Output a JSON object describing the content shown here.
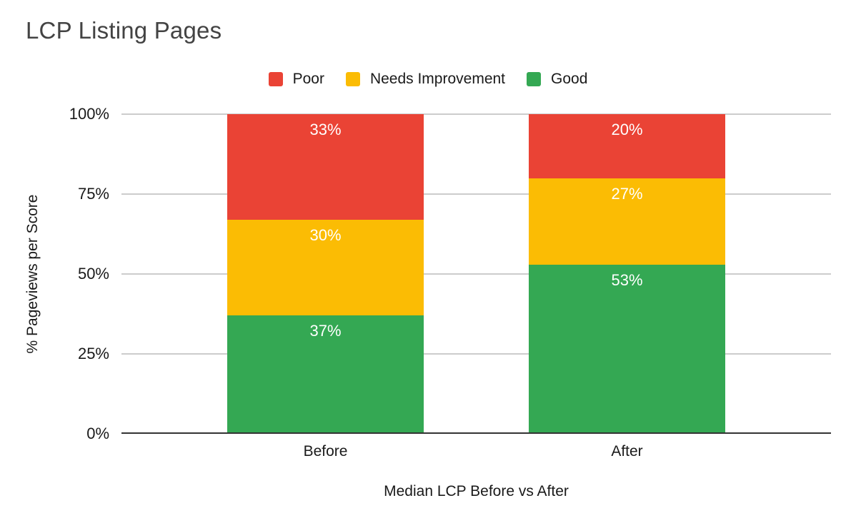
{
  "chart_data": {
    "type": "bar",
    "stacked": true,
    "title": "LCP Listing Pages",
    "categories": [
      "Before",
      "After"
    ],
    "series": [
      {
        "name": "Poor",
        "color": "#EA4335",
        "values": [
          33,
          20
        ]
      },
      {
        "name": "Needs Improvement",
        "color": "#FBBC04",
        "values": [
          30,
          27
        ]
      },
      {
        "name": "Good",
        "color": "#34A853",
        "values": [
          37,
          53
        ]
      }
    ],
    "value_suffix": "%",
    "xlabel": "Median LCP Before vs After",
    "ylabel": "% Pageviews per Score",
    "y_ticks": [
      "0%",
      "25%",
      "50%",
      "75%",
      "100%"
    ],
    "ylim": [
      0,
      100
    ],
    "legend_position": "top",
    "grid": true,
    "colors": {
      "background": "#ffffff",
      "grid": "#cccccc",
      "axis": "#333333",
      "title_text": "#434343",
      "label_text": "#1a1a1a",
      "bar_label_text": "#ffffff"
    }
  }
}
